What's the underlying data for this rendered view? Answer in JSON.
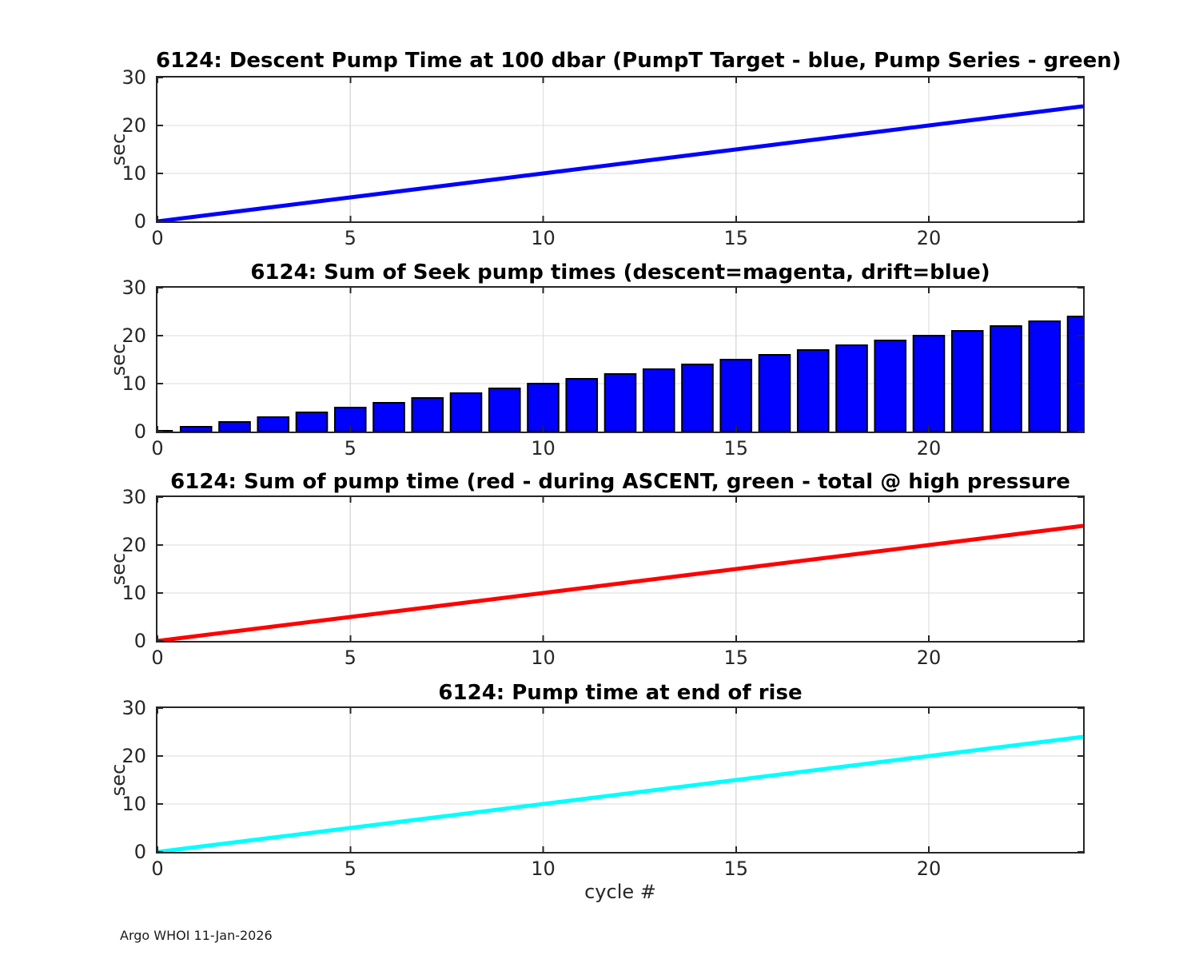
{
  "figure": {
    "footer": "Argo WHOI 11-Jan-2026",
    "background": "#ffffff",
    "axis_color": "#262626",
    "grid_color": "#dbdbdb"
  },
  "chart_data": [
    {
      "type": "line",
      "title": "6124: Descent Pump Time at 100 dbar (PumpT Target - blue, Pump Series - green)",
      "ylabel": "sec",
      "xlim": [
        0,
        24
      ],
      "ylim": [
        0,
        30
      ],
      "xticks": [
        0,
        5,
        10,
        15,
        20
      ],
      "yticks": [
        0,
        10,
        20,
        30
      ],
      "grid": true,
      "series": [
        {
          "name": "PumpT Target",
          "color": "#0000ff",
          "x": [
            0,
            1,
            2,
            3,
            4,
            5,
            6,
            7,
            8,
            9,
            10,
            11,
            12,
            13,
            14,
            15,
            16,
            17,
            18,
            19,
            20,
            21,
            22,
            23,
            24
          ],
          "y": [
            0,
            1,
            2,
            3,
            4,
            5,
            6,
            7,
            8,
            9,
            10,
            11,
            12,
            13,
            14,
            15,
            16,
            17,
            18,
            19,
            20,
            21,
            22,
            23,
            24
          ]
        }
      ]
    },
    {
      "type": "bar",
      "title": "6124: Sum of Seek pump times (descent=magenta, drift=blue)",
      "ylabel": "sec",
      "xlim": [
        0,
        24
      ],
      "ylim": [
        0,
        30
      ],
      "xticks": [
        0,
        5,
        10,
        15,
        20
      ],
      "yticks": [
        0,
        10,
        20,
        30
      ],
      "grid": true,
      "bar_color": "#0000ff",
      "bar_edge_color": "#000000",
      "bar_width": 0.8,
      "categories": [
        0,
        1,
        2,
        3,
        4,
        5,
        6,
        7,
        8,
        9,
        10,
        11,
        12,
        13,
        14,
        15,
        16,
        17,
        18,
        19,
        20,
        21,
        22,
        23,
        24
      ],
      "values": [
        0,
        1,
        2,
        3,
        4,
        5,
        6,
        7,
        8,
        9,
        10,
        11,
        12,
        13,
        14,
        15,
        16,
        17,
        18,
        19,
        20,
        21,
        22,
        23,
        24
      ]
    },
    {
      "type": "line",
      "title": "6124: Sum of pump time (red - during ASCENT, green - total @ high pressure",
      "ylabel": "sec",
      "xlim": [
        0,
        24
      ],
      "ylim": [
        0,
        30
      ],
      "xticks": [
        0,
        5,
        10,
        15,
        20
      ],
      "yticks": [
        0,
        10,
        20,
        30
      ],
      "grid": true,
      "series": [
        {
          "name": "during ASCENT",
          "color": "#ff0000",
          "x": [
            0,
            1,
            2,
            3,
            4,
            5,
            6,
            7,
            8,
            9,
            10,
            11,
            12,
            13,
            14,
            15,
            16,
            17,
            18,
            19,
            20,
            21,
            22,
            23,
            24
          ],
          "y": [
            0,
            1,
            2,
            3,
            4,
            5,
            6,
            7,
            8,
            9,
            10,
            11,
            12,
            13,
            14,
            15,
            16,
            17,
            18,
            19,
            20,
            21,
            22,
            23,
            24
          ]
        }
      ]
    },
    {
      "type": "line",
      "title": "6124: Pump time at end of rise",
      "ylabel": "sec",
      "xlabel": "cycle #",
      "xlim": [
        0,
        24
      ],
      "ylim": [
        0,
        30
      ],
      "xticks": [
        0,
        5,
        10,
        15,
        20
      ],
      "yticks": [
        0,
        10,
        20,
        30
      ],
      "grid": true,
      "series": [
        {
          "name": "pump time at end of rise",
          "color": "#00ffff",
          "x": [
            0,
            1,
            2,
            3,
            4,
            5,
            6,
            7,
            8,
            9,
            10,
            11,
            12,
            13,
            14,
            15,
            16,
            17,
            18,
            19,
            20,
            21,
            22,
            23,
            24
          ],
          "y": [
            0,
            1,
            2,
            3,
            4,
            5,
            6,
            7,
            8,
            9,
            10,
            11,
            12,
            13,
            14,
            15,
            16,
            17,
            18,
            19,
            20,
            21,
            22,
            23,
            24
          ]
        }
      ]
    }
  ]
}
